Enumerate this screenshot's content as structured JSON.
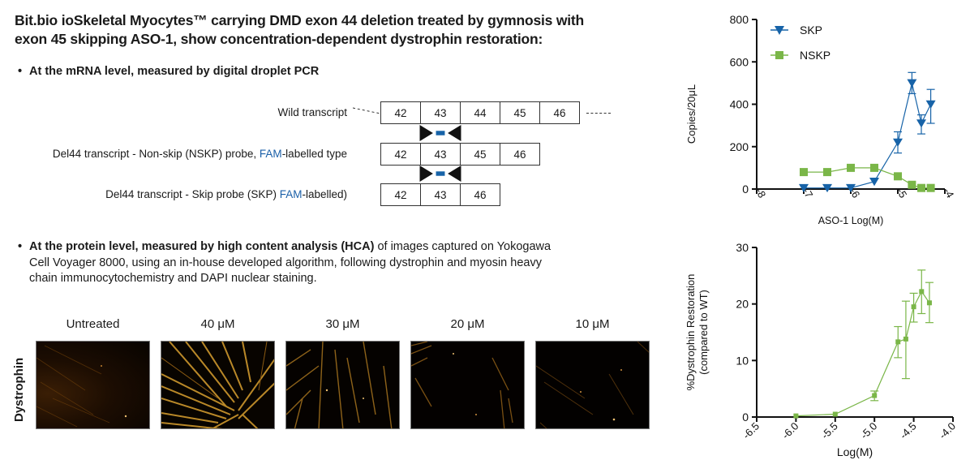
{
  "title": {
    "line1": "Bit.bio ioSkeletal Myocytes™ carrying DMD exon 44 deletion treated by gymnosis with",
    "line2": "exon 45 skipping ASO-1, show concentration-dependent dystrophin restoration:"
  },
  "mrna_section": {
    "bullet": "•",
    "text": "At the mRNA level, measured by digital droplet PCR"
  },
  "transcripts": [
    {
      "label": "Wild transcript",
      "label_prefix": "",
      "fam": "",
      "label_suffix": "",
      "exons": [
        "42",
        "43",
        "44",
        "45",
        "46"
      ]
    },
    {
      "label": "",
      "label_prefix": "Del44 transcript - Non-skip (NSKP) probe, ",
      "fam": "FAM",
      "label_suffix": "-labelled type",
      "exons": [
        "42",
        "43",
        "45",
        "46"
      ]
    },
    {
      "label": "",
      "label_prefix": "Del44 transcript - Skip probe (SKP) ",
      "fam": "FAM",
      "label_suffix": "-labelled)",
      "exons": [
        "42",
        "43",
        "46"
      ]
    }
  ],
  "protein_section": {
    "bullet": "•",
    "bold_text": "At the protein level, measured by high content analysis (HCA)",
    "text_line1_rest": " of images captured on Yokogawa",
    "line2": "Cell Voyager 8000, using an in-house developed algorithm, following dystrophin and myosin heavy",
    "line3": "chain immunocytochemistry and DAPI nuclear staining."
  },
  "micrographs": {
    "row_label": "Dystrophin",
    "columns": [
      "Untreated",
      "40 μM",
      "30 μM",
      "20 μM",
      "10 μM"
    ]
  },
  "colors": {
    "skp": "#1763a8",
    "nskp": "#7ab648",
    "restoration": "#7ab648",
    "fam_text": "#1a5fa8"
  },
  "chart_data": [
    {
      "type": "line",
      "title": "",
      "xlabel": "ASO-1 Log(M)",
      "ylabel": "Copies/20μL",
      "xlim": [
        -8,
        -4
      ],
      "ylim": [
        0,
        800
      ],
      "xticks": [
        "-8",
        "-7",
        "-6",
        "-5",
        "-4"
      ],
      "yticks": [
        "0",
        "200",
        "400",
        "600",
        "800"
      ],
      "legend_position": "upper-left",
      "series": [
        {
          "name": "SKP",
          "marker": "triangle-down",
          "x": [
            -7,
            -6.5,
            -6,
            -5.5,
            -5,
            -4.7,
            -4.5,
            -4.3
          ],
          "values": [
            5,
            5,
            5,
            35,
            220,
            500,
            310,
            400
          ],
          "err_low": [
            null,
            null,
            null,
            null,
            170,
            450,
            260,
            310
          ],
          "err_high": [
            null,
            null,
            null,
            null,
            270,
            550,
            350,
            470
          ]
        },
        {
          "name": "NSKP",
          "marker": "square",
          "x": [
            -7,
            -6.5,
            -6,
            -5.5,
            -5,
            -4.7,
            -4.5,
            -4.3
          ],
          "values": [
            80,
            80,
            100,
            100,
            60,
            20,
            5,
            5
          ]
        }
      ]
    },
    {
      "type": "line",
      "title": "",
      "xlabel": "Log(M)",
      "ylabel": "%Dystrophin Restoration (compared to WT)",
      "ylabel_line1": "%Dystrophin Restoration",
      "ylabel_line2": "(compared to WT)",
      "xlim": [
        -6.5,
        -4.0
      ],
      "ylim": [
        0,
        30
      ],
      "xticks": [
        "-6.5",
        "-6.0",
        "-5.5",
        "-5.0",
        "-4.5",
        "-4.0"
      ],
      "yticks": [
        "0",
        "10",
        "20",
        "30"
      ],
      "series": [
        {
          "name": "%Dystrophin Restoration",
          "marker": "square",
          "x": [
            -6.0,
            -5.5,
            -5.0,
            -4.7,
            -4.6,
            -4.5,
            -4.4,
            -4.3
          ],
          "values": [
            0.2,
            0.5,
            3.8,
            13.3,
            13.8,
            19.5,
            22.2,
            20.2
          ],
          "err_low": [
            null,
            null,
            2.9,
            10.5,
            6.8,
            16.8,
            18.3,
            16.7
          ],
          "err_high": [
            null,
            null,
            4.6,
            16.0,
            20.5,
            21.9,
            26.0,
            23.8
          ]
        }
      ]
    }
  ]
}
